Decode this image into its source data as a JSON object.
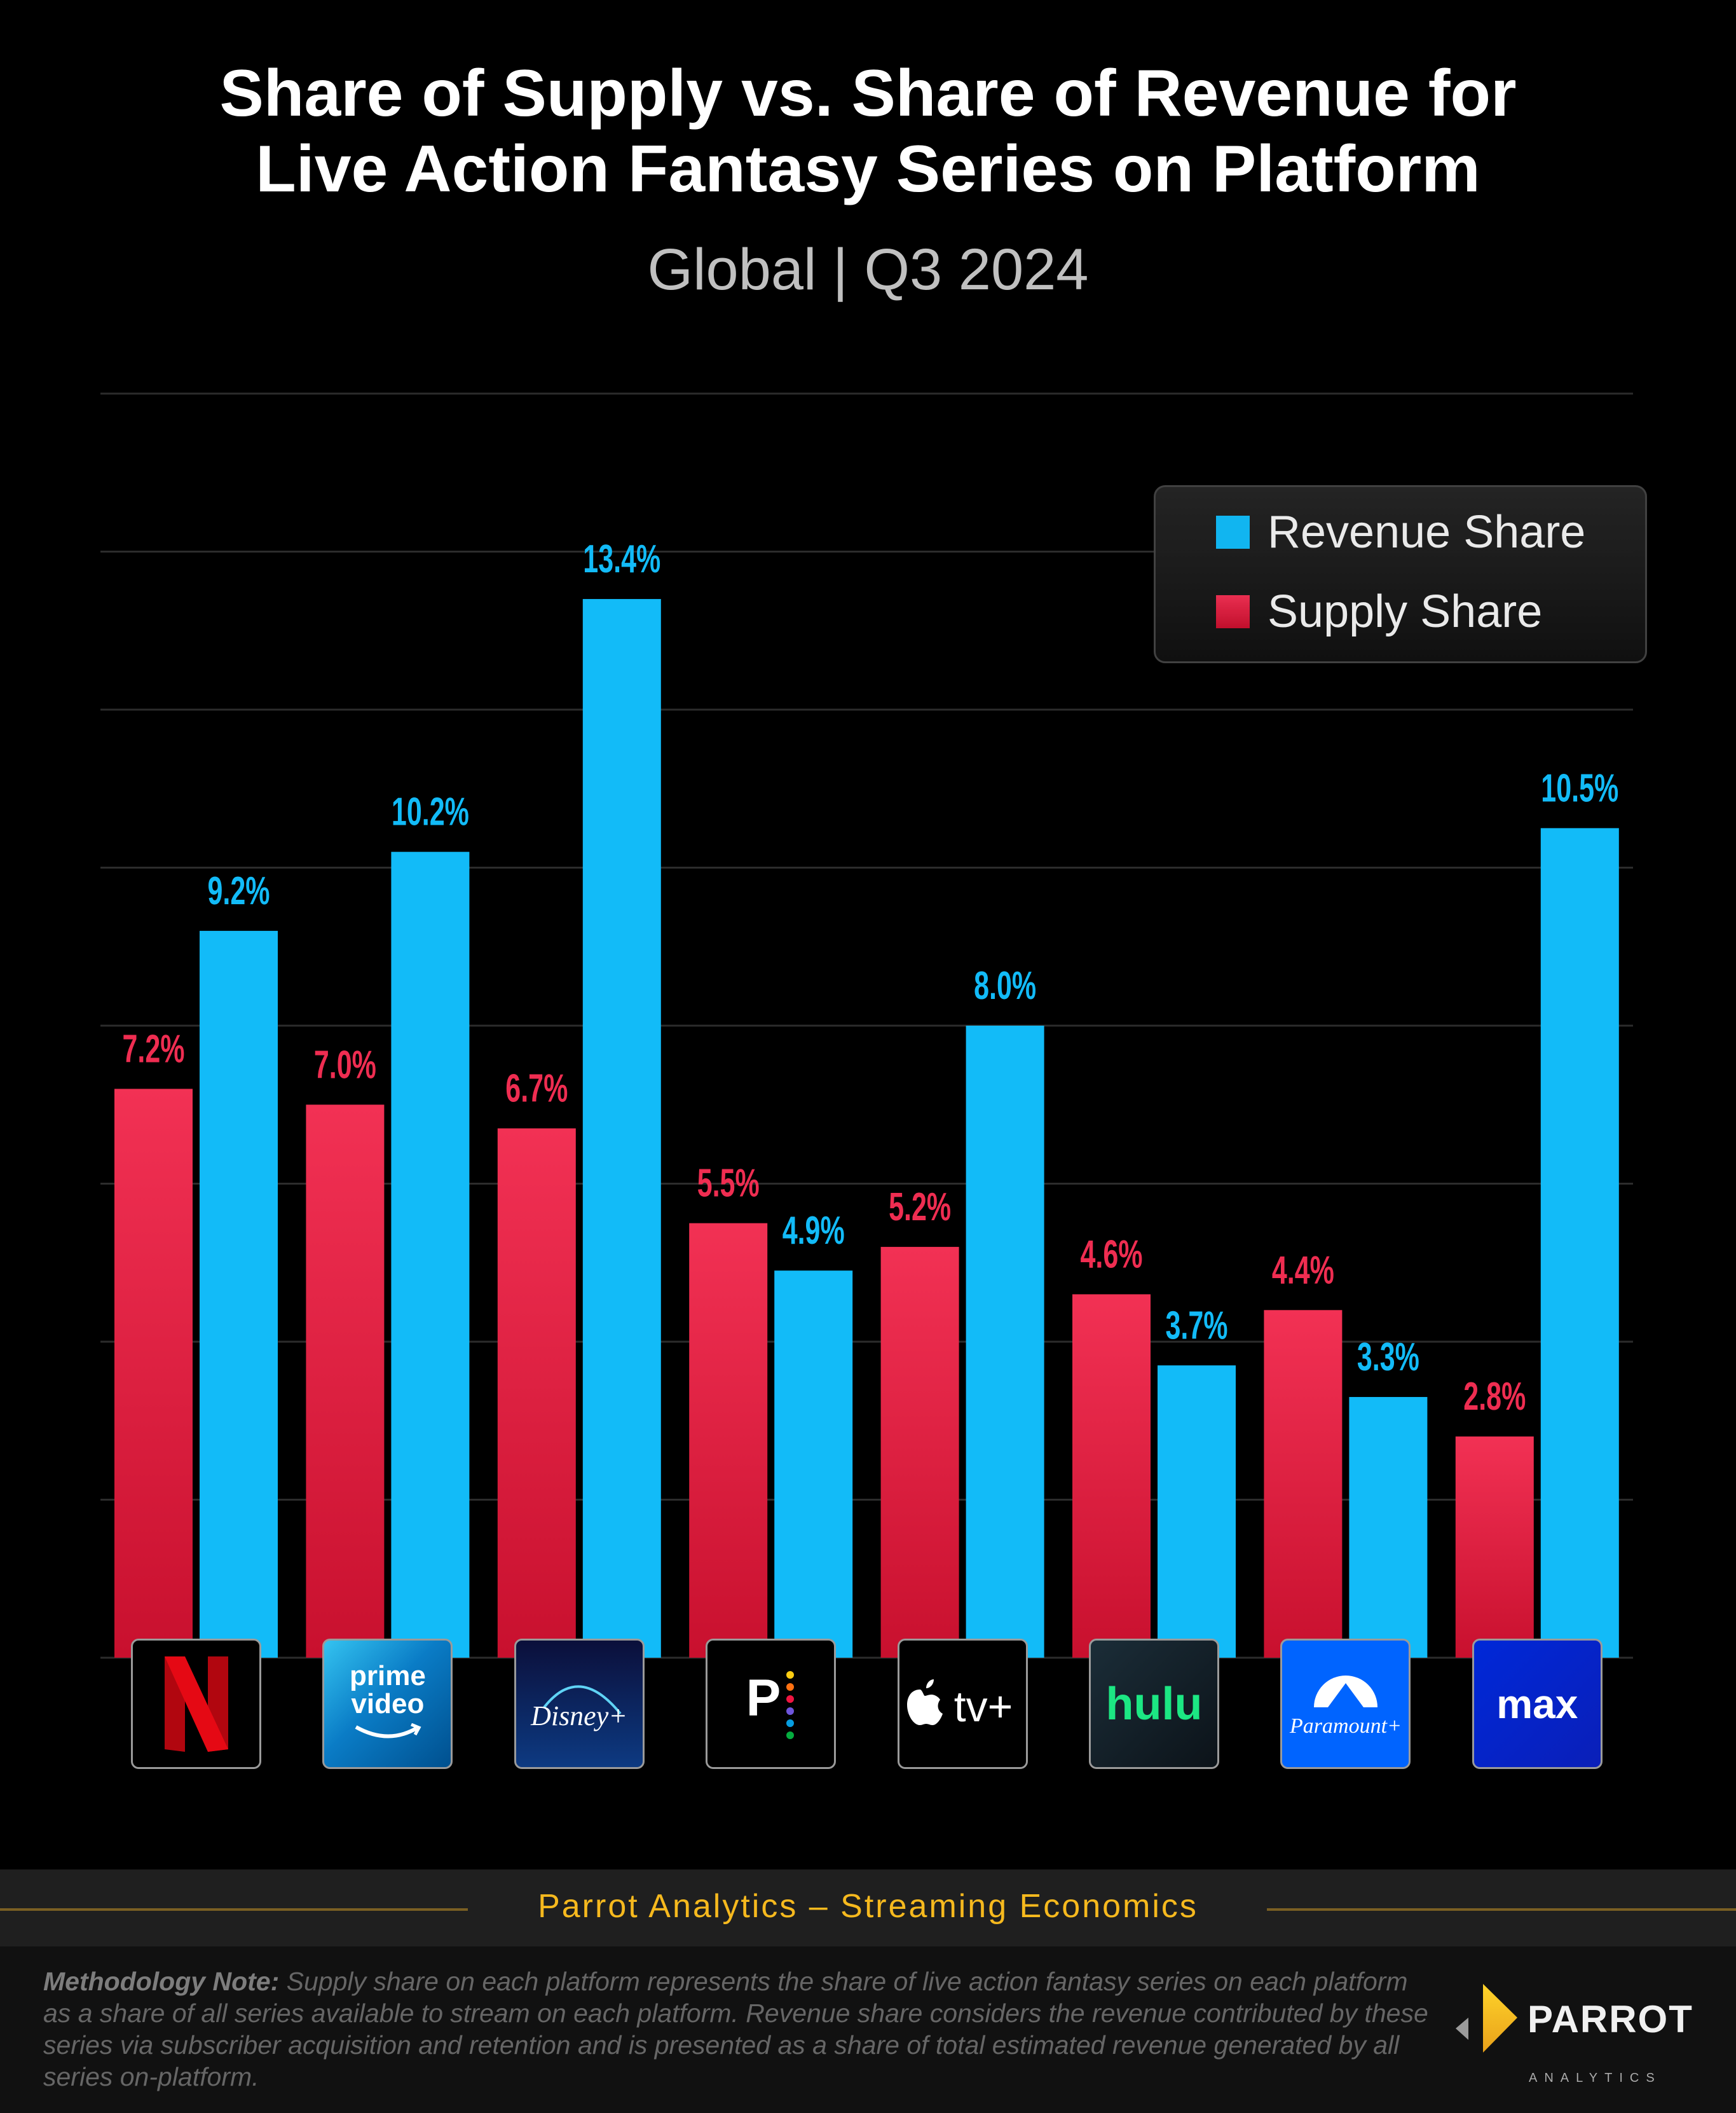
{
  "header": {
    "title_line1": "Share of Supply vs. Share of Revenue for",
    "title_line2": "Live Action Fantasy Series on Platform",
    "subtitle": "Global |  Q3 2024"
  },
  "colors": {
    "revenue": "#12bbf8",
    "supply": "#ef2d51",
    "supply_dark": "#c8102e",
    "gridline": "#2c2c2c",
    "footer_accent": "#f6b91e"
  },
  "legend": {
    "items": [
      {
        "label": "Revenue Share",
        "series": "revenue"
      },
      {
        "label": "Supply Share",
        "series": "supply"
      }
    ]
  },
  "platforms": [
    {
      "name": "Netflix",
      "logo_icon": "netflix-logo-icon"
    },
    {
      "name": "Prime Video",
      "logo_icon": "prime-video-logo-icon",
      "logo_text": [
        "prime",
        "video"
      ]
    },
    {
      "name": "Disney+",
      "logo_icon": "disney-plus-logo-icon",
      "logo_text": "Disney+"
    },
    {
      "name": "Peacock",
      "logo_icon": "peacock-logo-icon",
      "logo_text": "P"
    },
    {
      "name": "Apple TV+",
      "logo_icon": "apple-tv-plus-logo-icon",
      "logo_text": "tv+"
    },
    {
      "name": "Hulu",
      "logo_icon": "hulu-logo-icon",
      "logo_text": "hulu"
    },
    {
      "name": "Paramount+",
      "logo_icon": "paramount-plus-logo-icon",
      "logo_text": "Paramount+"
    },
    {
      "name": "Max",
      "logo_icon": "max-logo-icon",
      "logo_text": "max"
    }
  ],
  "chart_data": {
    "type": "bar",
    "title": "Share of Supply vs. Share of Revenue for Live Action Fantasy Series on Platform",
    "subtitle": "Global | Q3 2024",
    "categories": [
      "Netflix",
      "Prime Video",
      "Disney+",
      "Peacock",
      "Apple TV+",
      "Hulu",
      "Paramount+",
      "Max"
    ],
    "series": [
      {
        "name": "Supply Share",
        "key": "supply",
        "values": [
          7.2,
          7.0,
          6.7,
          5.5,
          5.2,
          4.6,
          4.4,
          2.8
        ],
        "labels": [
          "7.2%",
          "7.0%",
          "6.7%",
          "5.5%",
          "5.2%",
          "4.6%",
          "4.4%",
          "2.8%"
        ]
      },
      {
        "name": "Revenue Share",
        "key": "revenue",
        "values": [
          9.2,
          10.2,
          13.4,
          4.9,
          8.0,
          3.7,
          3.3,
          10.5
        ],
        "labels": [
          "9.2%",
          "10.2%",
          "13.4%",
          "4.9%",
          "8.0%",
          "3.7%",
          "3.3%",
          "10.5%"
        ]
      }
    ],
    "xlabel": "",
    "ylabel": "",
    "ylim": [
      0,
      16
    ],
    "gridline_step": 2,
    "grid": true,
    "y_tick_labels_shown": false,
    "legend_position": "top-right",
    "unit": "%"
  },
  "footer": {
    "brand_line": "Parrot Analytics – Streaming Economics",
    "note_label": "Methodology Note:",
    "note_text": " Supply share on each platform represents the share of live action fantasy series on each platform as a share of all series available to stream on each platform.  Revenue share considers the revenue contributed by these series via subscriber acquisition and retention and is presented as a share of total estimated revenue generated by all series on-platform.",
    "logo_word": "PARROT",
    "logo_sub": "ANALYTICS"
  }
}
